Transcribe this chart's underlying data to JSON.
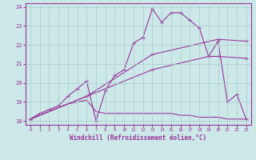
{
  "bg_color": "#cce8e8",
  "grid_color": "#aacccc",
  "line_color": "#993399",
  "xlabel": "Windchill (Refroidissement éolien,°C)",
  "xlim": [
    -0.5,
    23.5
  ],
  "ylim": [
    17.8,
    24.2
  ],
  "yticks": [
    18,
    19,
    20,
    21,
    22,
    23,
    24
  ],
  "xticks": [
    0,
    1,
    2,
    3,
    4,
    5,
    6,
    7,
    8,
    9,
    10,
    11,
    12,
    13,
    14,
    15,
    16,
    17,
    18,
    19,
    20,
    21,
    22,
    23
  ],
  "series": [
    {
      "x": [
        0,
        1,
        2,
        3,
        4,
        5,
        6,
        7,
        8,
        9,
        10,
        11,
        12,
        13,
        14,
        15,
        16,
        17,
        18,
        19,
        20,
        21,
        22,
        23
      ],
      "y": [
        18.1,
        18.4,
        18.6,
        18.8,
        19.3,
        19.7,
        20.1,
        18.0,
        19.6,
        20.4,
        20.7,
        22.1,
        22.4,
        23.9,
        23.2,
        23.7,
        23.7,
        23.3,
        22.9,
        21.4,
        22.2,
        19.0,
        19.4,
        18.1
      ],
      "markers": true
    },
    {
      "x": [
        0,
        1,
        2,
        3,
        4,
        5,
        6,
        7,
        8,
        9,
        10,
        11,
        12,
        13,
        14,
        15,
        16,
        17,
        18,
        19,
        20,
        21,
        22,
        23
      ],
      "y": [
        18.1,
        18.3,
        18.5,
        18.7,
        18.9,
        19.0,
        19.1,
        18.5,
        18.4,
        18.4,
        18.4,
        18.4,
        18.4,
        18.4,
        18.4,
        18.4,
        18.3,
        18.3,
        18.2,
        18.2,
        18.2,
        18.1,
        18.1,
        18.1
      ],
      "markers": false
    },
    {
      "x": [
        0,
        6,
        13,
        20,
        23
      ],
      "y": [
        18.1,
        19.3,
        21.5,
        22.3,
        22.2
      ],
      "markers": true
    },
    {
      "x": [
        0,
        6,
        13,
        19,
        20,
        23
      ],
      "y": [
        18.1,
        19.3,
        20.7,
        21.4,
        21.4,
        21.3
      ],
      "markers": true
    }
  ]
}
